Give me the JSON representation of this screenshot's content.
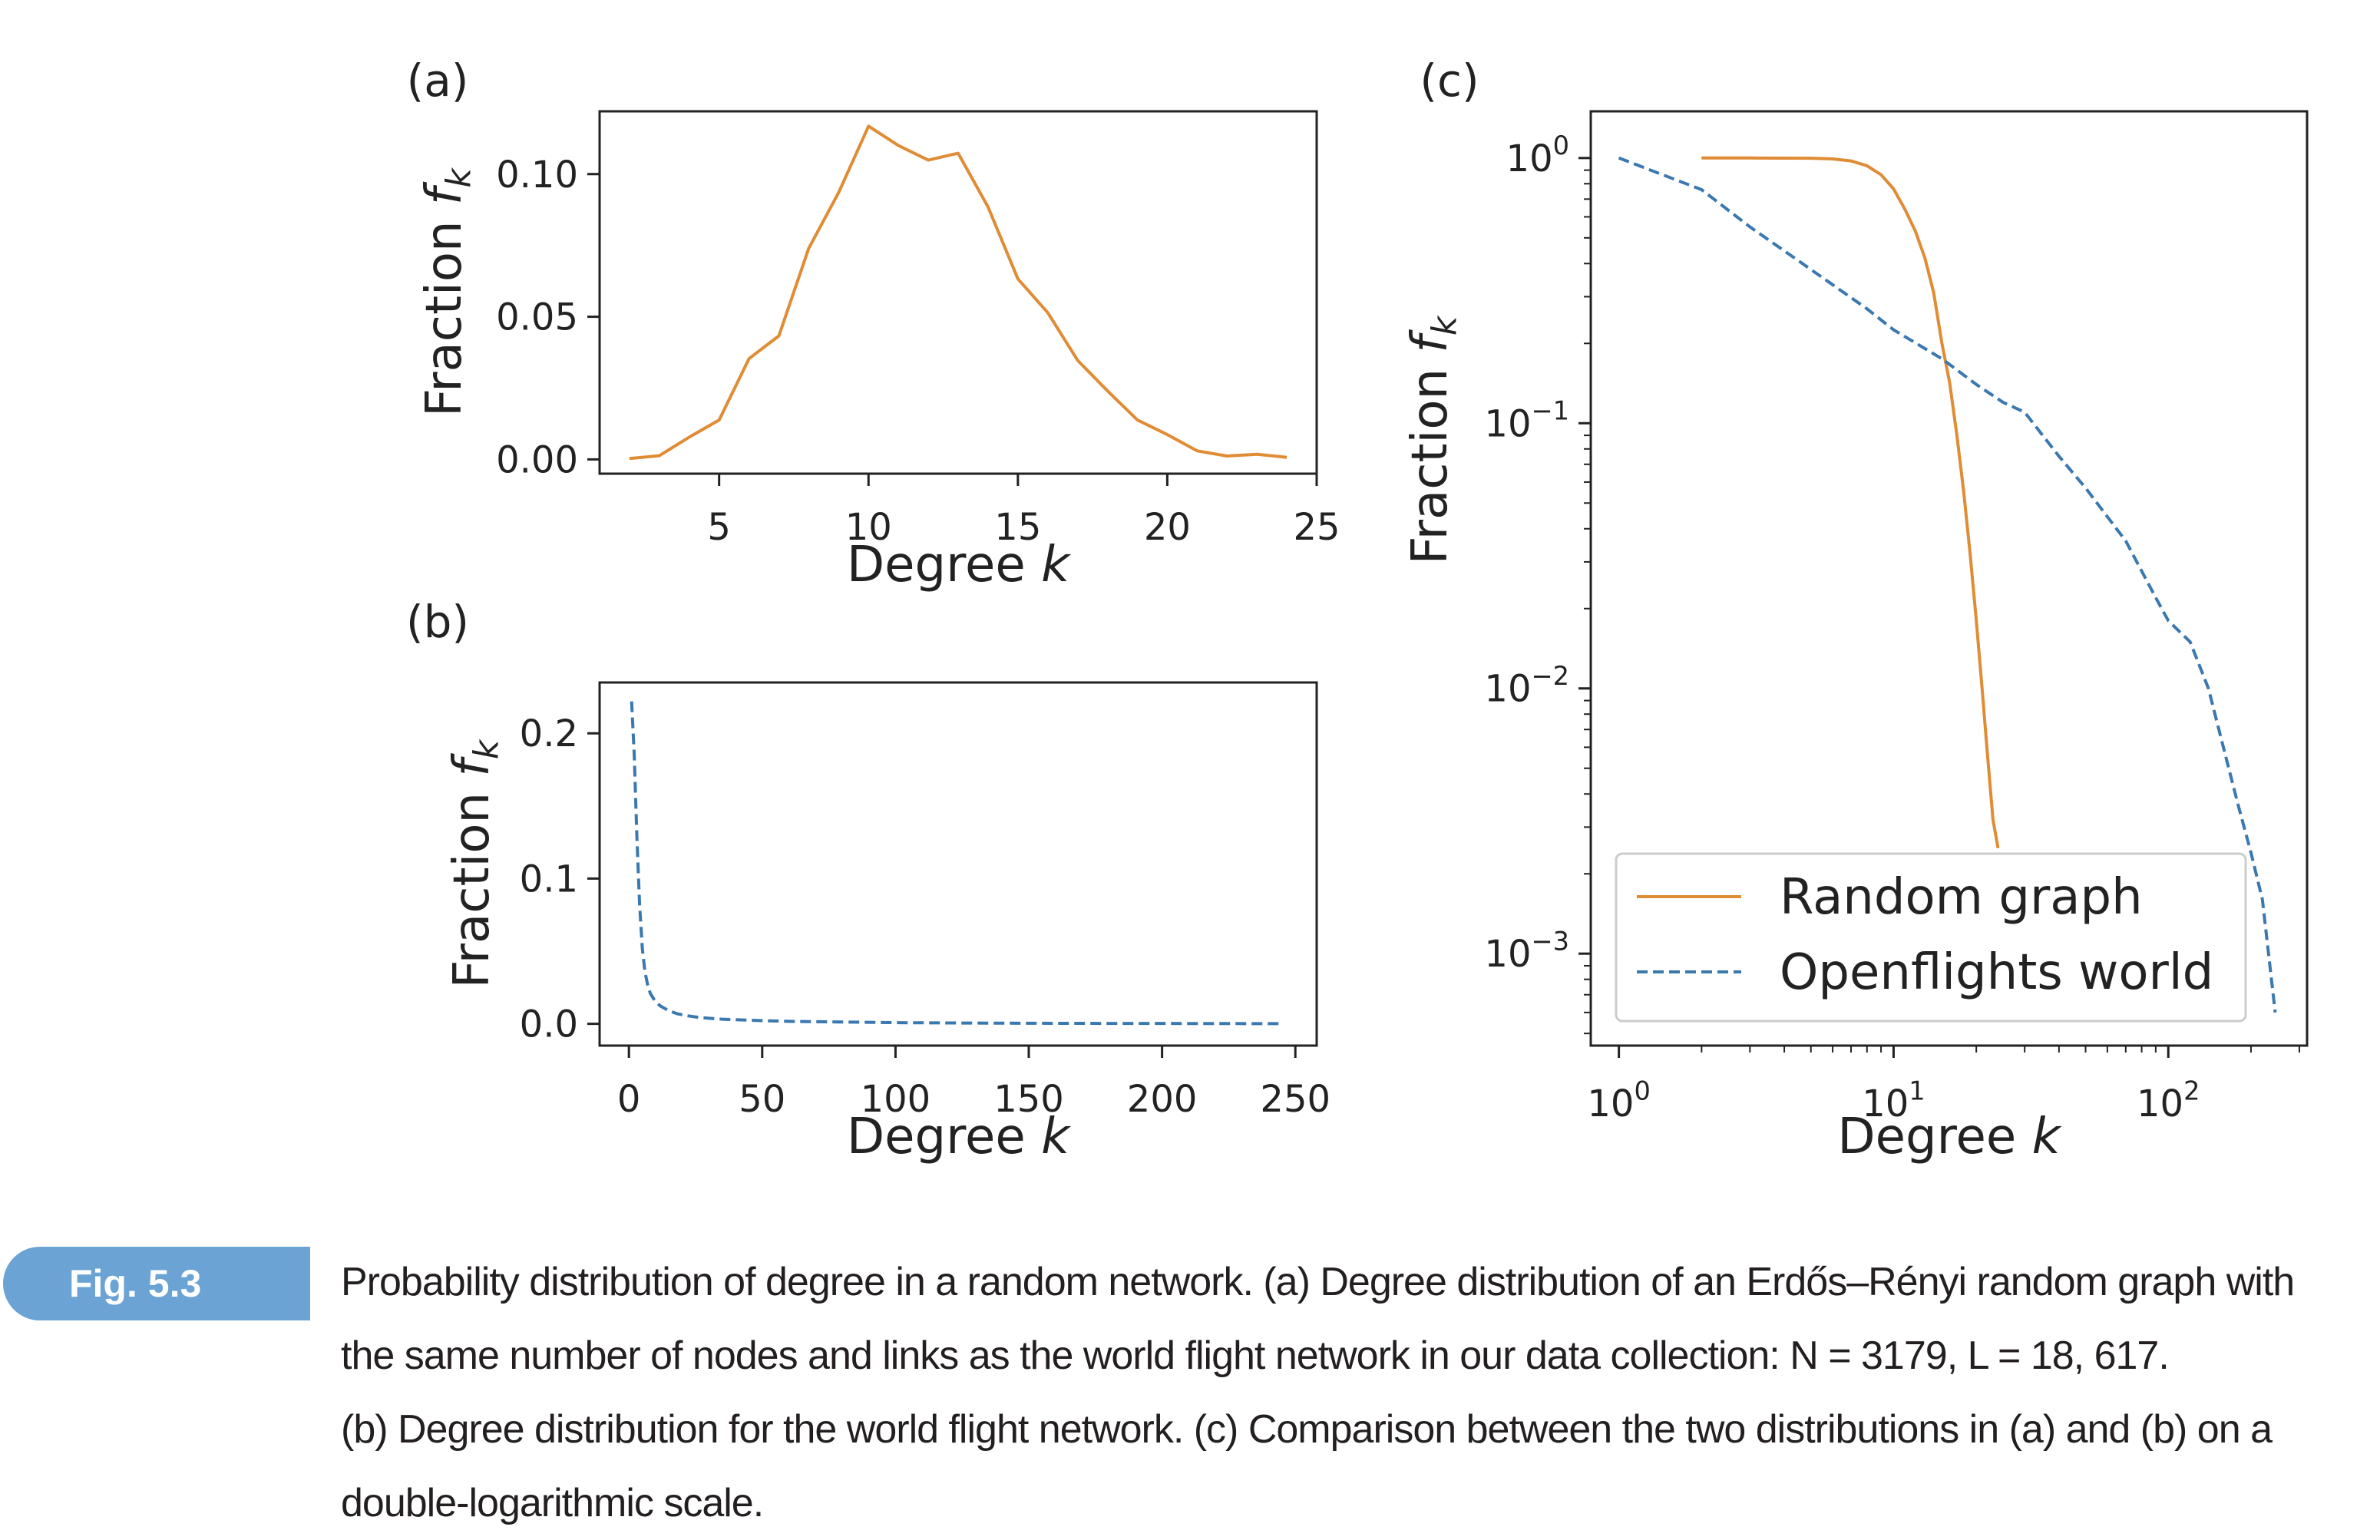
{
  "chart_data": [
    {
      "panel": "(a)",
      "type": "line",
      "xlabel": "Degree k",
      "ylabel": "Fraction f_k",
      "xlim": [
        1,
        25
      ],
      "ylim": [
        -0.005,
        0.122
      ],
      "xticks": [
        5,
        10,
        15,
        20,
        25
      ],
      "yticks": [
        0.0,
        0.05,
        0.1
      ],
      "ytick_labels": [
        "0.00",
        "0.05",
        "0.10"
      ],
      "series": [
        {
          "color": "#e08c35",
          "linestyle": "solid",
          "x": [
            2,
            3,
            4,
            5,
            6,
            7,
            8,
            9,
            10,
            11,
            12,
            13,
            14,
            15,
            16,
            17,
            18,
            19,
            20,
            21,
            22,
            23,
            24
          ],
          "y": [
            0.0003,
            0.0013,
            0.0078,
            0.0138,
            0.0353,
            0.0433,
            0.074,
            0.0935,
            0.1168,
            0.11,
            0.1049,
            0.1073,
            0.0885,
            0.0633,
            0.0514,
            0.0347,
            0.024,
            0.0138,
            0.0087,
            0.003,
            0.0012,
            0.0018,
            0.0007
          ]
        }
      ]
    },
    {
      "panel": "(b)",
      "type": "line",
      "xlabel": "Degree k",
      "ylabel": "Fraction f_k",
      "xlim": [
        -11,
        258
      ],
      "ylim": [
        -0.015,
        0.235
      ],
      "xticks": [
        0,
        50,
        100,
        150,
        200,
        250
      ],
      "yticks": [
        0.0,
        0.1,
        0.2
      ],
      "ytick_labels": [
        "0.0",
        "0.1",
        "0.2"
      ],
      "series": [
        {
          "color": "#3a78b0",
          "linestyle": "dashed",
          "x": [
            1,
            2,
            3,
            4,
            5,
            6,
            7,
            8,
            10,
            12,
            15,
            18,
            22,
            26,
            30,
            35,
            40,
            50,
            60,
            80,
            100,
            120,
            150,
            180,
            210,
            245
          ],
          "y": [
            0.222,
            0.185,
            0.128,
            0.082,
            0.052,
            0.036,
            0.027,
            0.021,
            0.015,
            0.012,
            0.009,
            0.007,
            0.0055,
            0.0045,
            0.0038,
            0.0032,
            0.0028,
            0.0022,
            0.0017,
            0.0012,
            0.0008,
            0.0006,
            0.0004,
            0.0003,
            0.0002,
            0.0001
          ]
        }
      ]
    },
    {
      "panel": "(c)",
      "type": "line",
      "xlabel": "Degree k",
      "ylabel": "Fraction f_k",
      "xscale": "log",
      "yscale": "log",
      "xlim": [
        0.79,
        320
      ],
      "ylim": [
        0.00045,
        1.5
      ],
      "xticks": [
        1,
        10,
        100
      ],
      "xtick_labels": [
        "10^0",
        "10^1",
        "10^2"
      ],
      "yticks": [
        0.001,
        0.01,
        0.1,
        1
      ],
      "ytick_labels": [
        "10^−3",
        "10^−2",
        "10^−1",
        "10^0"
      ],
      "legend_position": "lower right",
      "series": [
        {
          "name": "Random graph",
          "color": "#e08c35",
          "linestyle": "solid",
          "x": [
            2,
            3,
            4,
            5,
            6,
            7,
            8,
            9,
            10,
            11,
            12,
            13,
            14,
            15,
            16,
            17,
            18,
            19,
            20,
            21,
            22,
            23,
            24
          ],
          "y": [
            1.0,
            1.0,
            0.999,
            0.998,
            0.992,
            0.975,
            0.935,
            0.865,
            0.765,
            0.64,
            0.53,
            0.42,
            0.31,
            0.2,
            0.142,
            0.09,
            0.055,
            0.032,
            0.018,
            0.01,
            0.0055,
            0.0032,
            0.0025
          ]
        },
        {
          "name": "Openflights world",
          "color": "#3a78b0",
          "linestyle": "dashed",
          "x": [
            1,
            2,
            3,
            5,
            8,
            10,
            15,
            20,
            25,
            30,
            40,
            50,
            70,
            90,
            100,
            120,
            140,
            160,
            180,
            200,
            220,
            245
          ],
          "y": [
            1.0,
            0.76,
            0.55,
            0.38,
            0.27,
            0.225,
            0.175,
            0.14,
            0.12,
            0.11,
            0.075,
            0.057,
            0.036,
            0.022,
            0.018,
            0.015,
            0.01,
            0.0058,
            0.0036,
            0.0024,
            0.0016,
            0.0006
          ]
        }
      ]
    }
  ],
  "panels": {
    "a": {
      "label": "(a)",
      "xlabel_main": "Degree ",
      "xlabel_var": "k",
      "ylabel_main": "Fraction ",
      "ylabel_var": "f",
      "ylabel_sub": "k"
    },
    "b": {
      "label": "(b)",
      "xlabel_main": "Degree ",
      "xlabel_var": "k",
      "ylabel_main": "Fraction ",
      "ylabel_var": "f",
      "ylabel_sub": "k"
    },
    "c": {
      "label": "(c)",
      "xlabel_main": "Degree ",
      "xlabel_var": "k",
      "ylabel_main": "Fraction ",
      "ylabel_var": "f",
      "ylabel_sub": "k"
    }
  },
  "caption": {
    "tag": "Fig. 5.3",
    "lines": [
      "Probability distribution of degree in a random network. (a) Degree distribution of an Erdős–Rényi random graph with",
      "the same number of nodes and links as the world flight network in our data collection: N = 3179, L = 18, 617.",
      "(b) Degree distribution for the world flight network. (c) Comparison between the two distributions in (a) and (b) on a",
      "double-logarithmic scale."
    ]
  },
  "colors": {
    "orange": "#e08c35",
    "blue": "#3a78b0",
    "tag_bg": "#6aa3d4"
  }
}
